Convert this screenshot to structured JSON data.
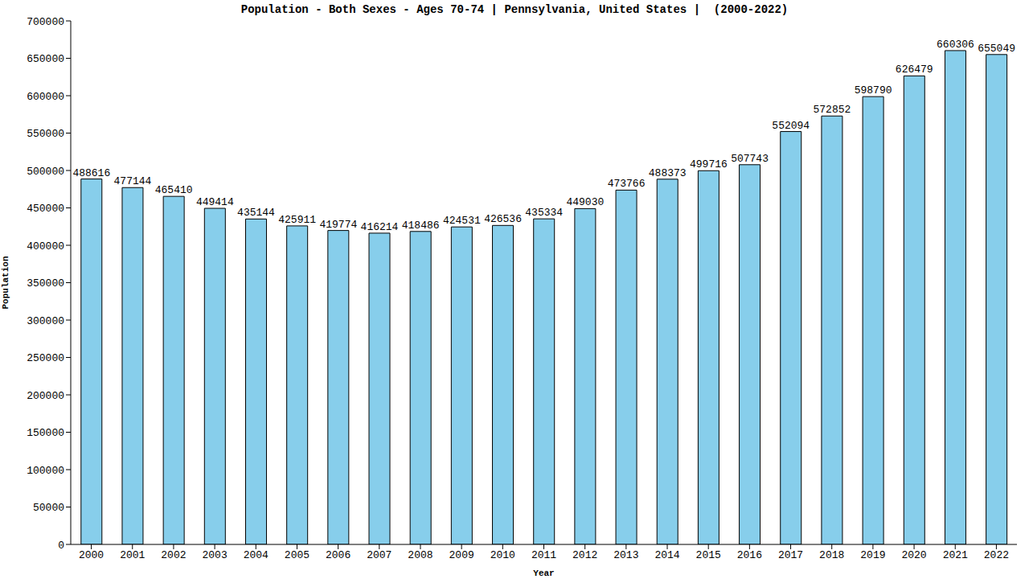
{
  "chart_data": {
    "type": "bar",
    "title": "Population - Both Sexes - Ages 70-74 | Pennsylvania, United States |  (2000-2022)",
    "x_label": "Year",
    "y_label": "Population",
    "categories": [
      "2000",
      "2001",
      "2002",
      "2003",
      "2004",
      "2005",
      "2006",
      "2007",
      "2008",
      "2009",
      "2010",
      "2011",
      "2012",
      "2013",
      "2014",
      "2015",
      "2016",
      "2017",
      "2018",
      "2019",
      "2020",
      "2021",
      "2022"
    ],
    "values": [
      488616,
      477144,
      465410,
      449414,
      435144,
      425911,
      419774,
      416214,
      418486,
      424531,
      426536,
      435334,
      449030,
      473766,
      488373,
      499716,
      507743,
      552094,
      572852,
      598790,
      626479,
      660306,
      655049
    ],
    "color": "#87ceeb",
    "ylim": [
      0,
      700000
    ],
    "yticks": [
      0,
      50000,
      100000,
      150000,
      200000,
      250000,
      300000,
      350000,
      400000,
      450000,
      500000,
      550000,
      600000,
      650000,
      700000
    ],
    "grid": false,
    "data_labels": true
  }
}
